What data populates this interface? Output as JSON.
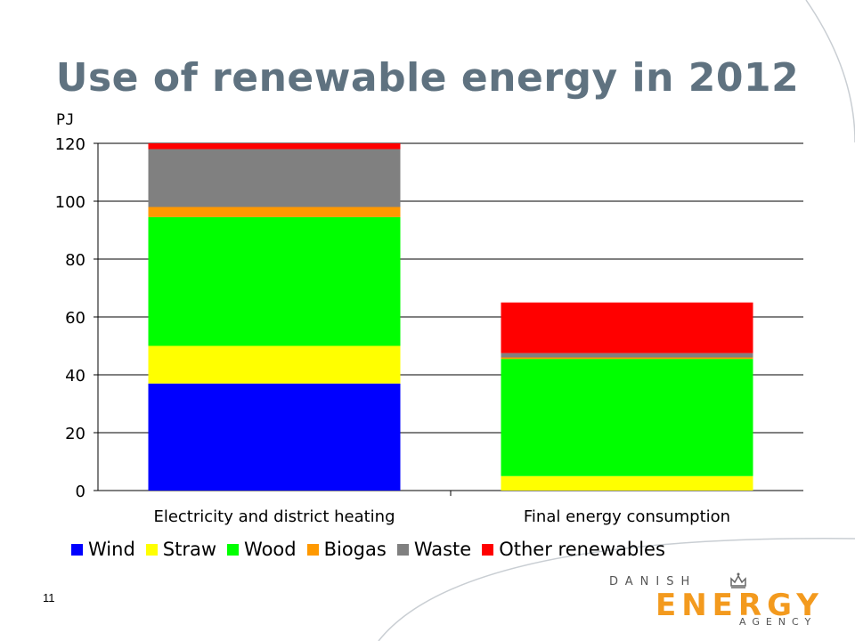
{
  "slide": {
    "title": "Use of renewable energy in 2012",
    "page_number": "11"
  },
  "logo": {
    "line1": "DANISH",
    "line2": "ENERGY",
    "line3": "AGENCY"
  },
  "chart_data": {
    "type": "bar",
    "stacked": true,
    "title": "Use of renewable energy in 2012",
    "ylabel": "PJ",
    "xlabel": "",
    "categories": [
      "Electricity and district heating",
      "Final energy consumption"
    ],
    "ylim": [
      0,
      120
    ],
    "yticks": [
      0,
      20,
      40,
      60,
      80,
      100,
      120
    ],
    "grid": true,
    "legend_position": "bottom",
    "series": [
      {
        "name": "Wind",
        "color": "#0000ff",
        "values": [
          37,
          0
        ]
      },
      {
        "name": "Straw",
        "color": "#ffff00",
        "values": [
          13,
          5
        ]
      },
      {
        "name": "Wood",
        "color": "#00ff00",
        "values": [
          44.5,
          40.5
        ]
      },
      {
        "name": "Biogas",
        "color": "#ff9900",
        "values": [
          3.5,
          0.5
        ]
      },
      {
        "name": "Waste",
        "color": "#808080",
        "values": [
          20,
          1.5
        ]
      },
      {
        "name": "Other renewables",
        "color": "#ff0000",
        "values": [
          2,
          17.5
        ]
      }
    ]
  }
}
